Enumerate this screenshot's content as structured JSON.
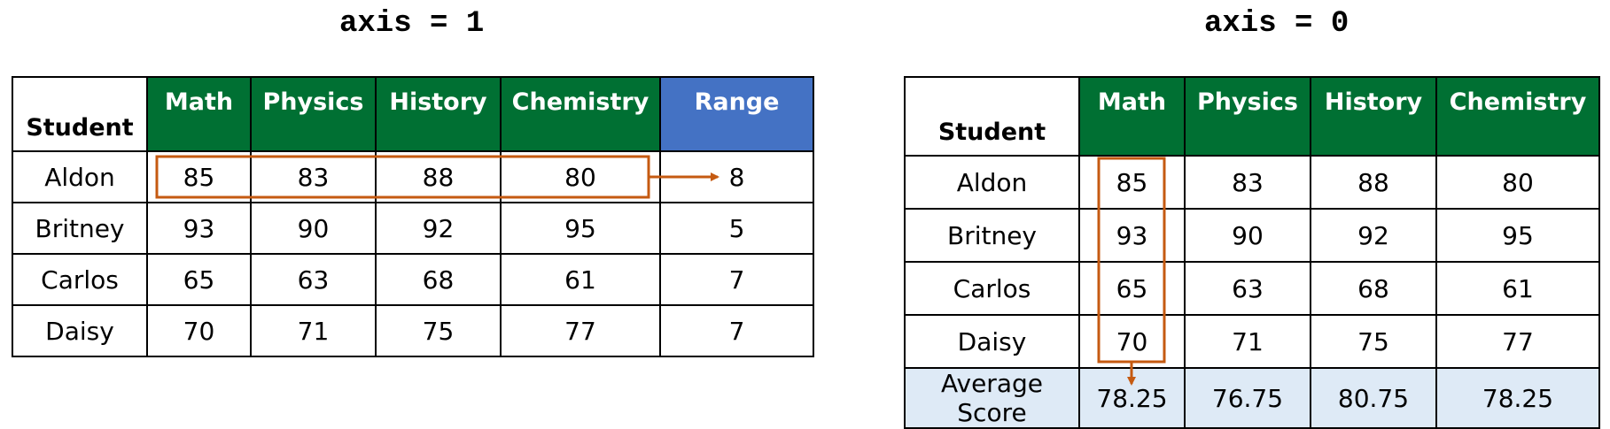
{
  "left": {
    "title": "axis = 1",
    "headers": [
      "Student",
      "Math",
      "Physics",
      "History",
      "Chemistry",
      "Range"
    ],
    "rows": [
      {
        "student": "Aldon",
        "scores": [
          "85",
          "83",
          "88",
          "80"
        ],
        "range": "8"
      },
      {
        "student": "Britney",
        "scores": [
          "93",
          "90",
          "92",
          "95"
        ],
        "range": "5"
      },
      {
        "student": "Carlos",
        "scores": [
          "65",
          "63",
          "68",
          "61"
        ],
        "range": "7"
      },
      {
        "student": "Daisy",
        "scores": [
          "70",
          "71",
          "75",
          "77"
        ],
        "range": "7"
      }
    ]
  },
  "right": {
    "title": "axis = 0",
    "headers": [
      "Student",
      "Math",
      "Physics",
      "History",
      "Chemistry"
    ],
    "rows": [
      {
        "student": "Aldon",
        "scores": [
          "85",
          "83",
          "88",
          "80"
        ]
      },
      {
        "student": "Britney",
        "scores": [
          "93",
          "90",
          "92",
          "95"
        ]
      },
      {
        "student": "Carlos",
        "scores": [
          "65",
          "63",
          "68",
          "61"
        ]
      },
      {
        "student": "Daisy",
        "scores": [
          "70",
          "71",
          "75",
          "77"
        ]
      }
    ],
    "average": {
      "label": "Average Score",
      "values": [
        "78.25",
        "76.75",
        "80.75",
        "78.25"
      ]
    }
  },
  "colors": {
    "subject_header": "#007033",
    "range_header": "#4472C4",
    "average_row": "#DEEAF6",
    "highlight": "#C55A11"
  }
}
